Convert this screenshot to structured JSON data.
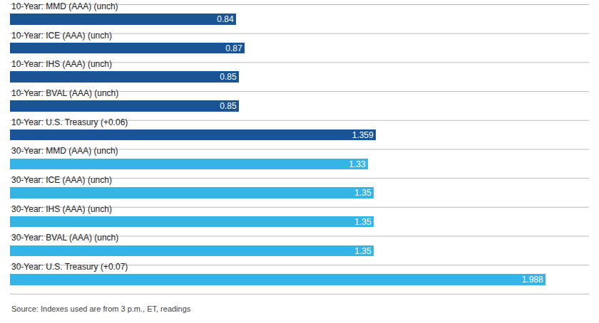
{
  "chart_data": {
    "type": "bar",
    "orientation": "horizontal",
    "categories": [
      "10-Year: MMD (AAA) (unch)",
      "10-Year: ICE (AAA) (unch)",
      "10-Year: IHS (AAA) (unch)",
      "10-Year: BVAL (AAA) (unch)",
      "10-Year: U.S. Treasury (+0.06)",
      "30-Year: MMD (AAA) (unch)",
      "30-Year: ICE (AAA) (unch)",
      "30-Year: IHS (AAA) (unch)",
      "30-Year: BVAL (AAA) (unch)",
      "30-Year: U.S. Treasury (+0.07)"
    ],
    "values": [
      0.84,
      0.87,
      0.85,
      0.85,
      1.359,
      1.33,
      1.35,
      1.35,
      1.35,
      1.988
    ],
    "value_labels": [
      "0.84",
      "0.87",
      "0.85",
      "0.85",
      "1.359",
      "1.33",
      "1.35",
      "1.35",
      "1.35",
      "1.988"
    ],
    "data_labels": true,
    "colors": [
      "#1a5494",
      "#1a5494",
      "#1a5494",
      "#1a5494",
      "#1a5494",
      "#35b5e5",
      "#35b5e5",
      "#35b5e5",
      "#35b5e5",
      "#35b5e5"
    ],
    "xlim": [
      0,
      2.15
    ],
    "tick_labels": false,
    "grid": false,
    "annotations": [
      "Source: Indexes used are from 3 p.m., ET, readings"
    ]
  }
}
